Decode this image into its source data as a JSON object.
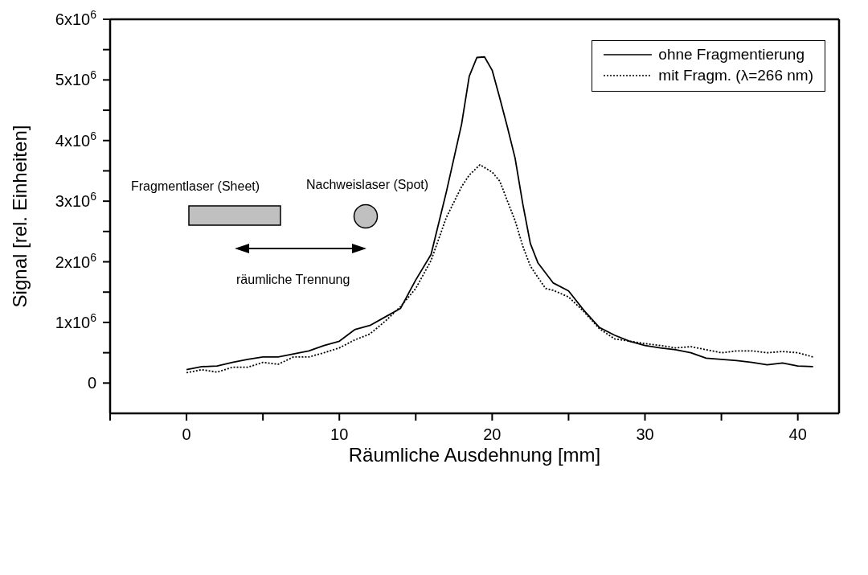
{
  "chart_data": {
    "type": "line",
    "xlabel": "Räumliche Ausdehnung [mm]",
    "ylabel": "Signal [rel. Einheiten]",
    "xlim": [
      -5,
      42.7
    ],
    "ylim": [
      -500000,
      6000000
    ],
    "xticks": [
      {
        "value": -5,
        "label": null
      },
      0,
      {
        "value": 5,
        "label": null
      },
      10,
      {
        "value": 15,
        "label": null
      },
      20,
      {
        "value": 25,
        "label": null
      },
      30,
      {
        "value": 35,
        "label": null
      },
      40
    ],
    "yticks": [
      0,
      {
        "value": 500000,
        "label": null
      },
      {
        "value": 1000000,
        "label": "1x10$^{6}$"
      },
      {
        "value": 1500000,
        "label": null
      },
      {
        "value": 2000000,
        "label": "2x10$^{6}$"
      },
      {
        "value": 2500000,
        "label": null
      },
      {
        "value": 3000000,
        "label": "3x10$^{6}$"
      },
      {
        "value": 3500000,
        "label": null
      },
      {
        "value": 4000000,
        "label": "4x10$^{6}$"
      },
      {
        "value": 4500000,
        "label": null
      },
      {
        "value": 5000000,
        "label": "5x10$^{6}$"
      },
      {
        "value": 5500000,
        "label": null
      },
      {
        "value": 6000000,
        "label": "6x10$^{6}$"
      }
    ],
    "grid": false,
    "legend": "top right",
    "marker": "none",
    "annotations": [
      "Fragmentlaser (Sheet)",
      "Nachweislaser (Spot)",
      "räumliche Trennung"
    ],
    "series": [
      {
        "name": "ohne Fragmentierung",
        "color": "#000000",
        "line_style": "solid",
        "x": [
          0,
          1,
          2,
          3,
          4,
          5,
          6,
          7,
          8,
          9,
          10,
          11,
          12,
          13,
          14,
          15,
          16,
          17,
          18,
          18.5,
          19,
          19.5,
          20,
          20.5,
          21,
          21.5,
          22,
          22.5,
          23,
          24,
          25,
          26,
          27,
          28,
          29,
          30,
          31,
          32,
          33,
          34,
          35,
          36,
          37,
          38,
          39,
          40,
          41
        ],
        "values": [
          220000,
          270000,
          280000,
          340000,
          390000,
          430000,
          430000,
          480000,
          530000,
          620000,
          690000,
          880000,
          950000,
          1090000,
          1230000,
          1700000,
          2120000,
          3150000,
          4270000,
          5060000,
          5370000,
          5380000,
          5160000,
          4700000,
          4220000,
          3710000,
          2960000,
          2300000,
          1980000,
          1650000,
          1520000,
          1200000,
          920000,
          790000,
          690000,
          620000,
          580000,
          550000,
          500000,
          410000,
          390000,
          370000,
          340000,
          300000,
          330000,
          280000,
          270000
        ]
      },
      {
        "name": "mit Fragm. (λ=266 nm)",
        "color": "#000000",
        "line_style": "dotted",
        "x": [
          0,
          1,
          2,
          3,
          4,
          5,
          6,
          7,
          8,
          9,
          10,
          11,
          12,
          13,
          14,
          15,
          16,
          17,
          18,
          18.5,
          19.2,
          20,
          20.5,
          21,
          21.5,
          22,
          22.5,
          23,
          23.5,
          24,
          25,
          26,
          27,
          28,
          29,
          30,
          31,
          32,
          33,
          34,
          35,
          36,
          37,
          38,
          39,
          40,
          41
        ],
        "values": [
          170000,
          220000,
          180000,
          260000,
          260000,
          340000,
          310000,
          430000,
          430000,
          500000,
          580000,
          710000,
          810000,
          1020000,
          1260000,
          1560000,
          2020000,
          2730000,
          3240000,
          3430000,
          3600000,
          3480000,
          3330000,
          3000000,
          2680000,
          2260000,
          1930000,
          1740000,
          1560000,
          1530000,
          1420000,
          1180000,
          900000,
          730000,
          690000,
          650000,
          620000,
          580000,
          600000,
          550000,
          500000,
          530000,
          530000,
          500000,
          520000,
          500000,
          430000
        ]
      }
    ]
  }
}
